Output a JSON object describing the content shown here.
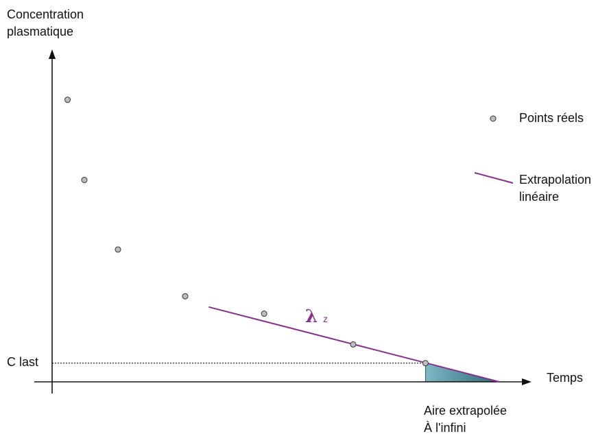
{
  "chart_data": {
    "type": "scatter",
    "title": "",
    "xlabel": "Temps",
    "ylabel": [
      "Concentration",
      "plasmatique"
    ],
    "grid": false,
    "legend_position": "right",
    "x": [
      1,
      2,
      4,
      8,
      12.7,
      18,
      22.3
    ],
    "y": [
      10.55,
      7.55,
      4.95,
      3.2,
      2.55,
      1.4,
      0.7
    ],
    "series": [
      {
        "name": "Points réels",
        "type": "scatter",
        "color": "#bdbdbd"
      },
      {
        "name": "Extrapolation linéaire",
        "type": "line",
        "color": "#8b2f8f"
      }
    ],
    "extrapolation_line": {
      "x": [
        9.4,
        26.7
      ],
      "y": [
        2.8,
        0
      ]
    },
    "clast_line": {
      "x_end": 22.3,
      "y": 0.7
    },
    "shaded_area": {
      "x_start": 22.3,
      "x_end": 26.7,
      "color": "#7fb7c4"
    },
    "annotations": {
      "lambda_symbol": "λ",
      "lambda_sub": "z",
      "clast_label": "C last",
      "area_label_line1": "Aire extrapolée",
      "area_label_line2": "À l'infini"
    },
    "legend": {
      "points_label": "Points réels",
      "line_label_line1": "Extrapolation",
      "line_label_line2": "linéaire"
    },
    "colors": {
      "axis": "#111111",
      "point_fill": "#bdbdbd",
      "line": "#8b2f8f",
      "area_start": "#7fb7c4",
      "area_end": "#2e6775"
    }
  }
}
